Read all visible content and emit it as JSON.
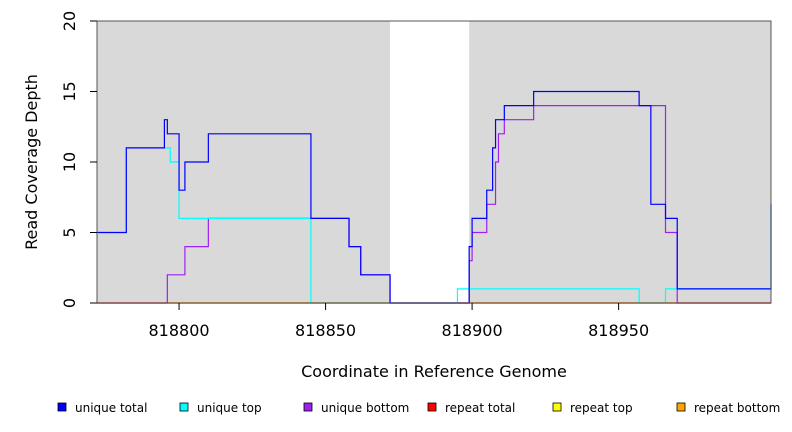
{
  "chart_data": {
    "type": "line",
    "title": "",
    "xlabel": "Coordinate in Reference Genome",
    "ylabel": "Read Coverage Depth",
    "xlim": [
      818772,
      819002
    ],
    "ylim": [
      0,
      20
    ],
    "x_ticks": [
      818800,
      818850,
      818900,
      818950
    ],
    "y_ticks": [
      0,
      5,
      10,
      15,
      20
    ],
    "grid": false,
    "legend_position": "bottom",
    "shaded_regions": [
      {
        "x_start": 818772,
        "x_end": 818872,
        "color": "#d9d9d9"
      },
      {
        "x_start": 818899,
        "x_end": 819002,
        "color": "#d9d9d9"
      }
    ],
    "series": [
      {
        "name": "unique total",
        "color": "#0000ff",
        "step": true,
        "x": [
          818772,
          818782,
          818795,
          818796,
          818797,
          818800,
          818802,
          818810,
          818845,
          818858,
          818862,
          818872,
          818899,
          818900,
          818905,
          818907,
          818908,
          818909,
          818911,
          818921,
          818957,
          818961,
          818966,
          818970,
          819002
        ],
        "y": [
          5,
          11,
          13,
          12,
          12,
          8,
          10,
          12,
          6,
          4,
          2,
          0,
          4,
          6,
          8,
          11,
          13,
          13,
          14,
          15,
          14,
          7,
          6,
          1,
          7
        ]
      },
      {
        "name": "unique top",
        "color": "#00ffff",
        "step": true,
        "x": [
          818772,
          818782,
          818797,
          818800,
          818845,
          818872,
          818895,
          818957,
          818966,
          819002
        ],
        "y": [
          5,
          11,
          10,
          6,
          0,
          0,
          1,
          0,
          1,
          7
        ]
      },
      {
        "name": "unique bottom",
        "color": "#a020f0",
        "step": true,
        "x": [
          818772,
          818796,
          818802,
          818810,
          818845,
          818858,
          818862,
          818872,
          818899,
          818900,
          818905,
          818908,
          818909,
          818911,
          818921,
          818957,
          818966,
          818970,
          819002
        ],
        "y": [
          0,
          2,
          4,
          6,
          6,
          4,
          2,
          0,
          3,
          5,
          7,
          10,
          12,
          13,
          14,
          14,
          5,
          0,
          0
        ]
      },
      {
        "name": "repeat total",
        "color": "#ff0000",
        "step": true,
        "x": [
          818772,
          819002
        ],
        "y": [
          0,
          0
        ]
      },
      {
        "name": "repeat top",
        "color": "#ffff00",
        "step": true,
        "x": [
          818772,
          819002
        ],
        "y": [
          0,
          0
        ]
      },
      {
        "name": "repeat bottom",
        "color": "#ffa500",
        "step": true,
        "x": [
          818772,
          819002
        ],
        "y": [
          0,
          0
        ]
      }
    ]
  }
}
